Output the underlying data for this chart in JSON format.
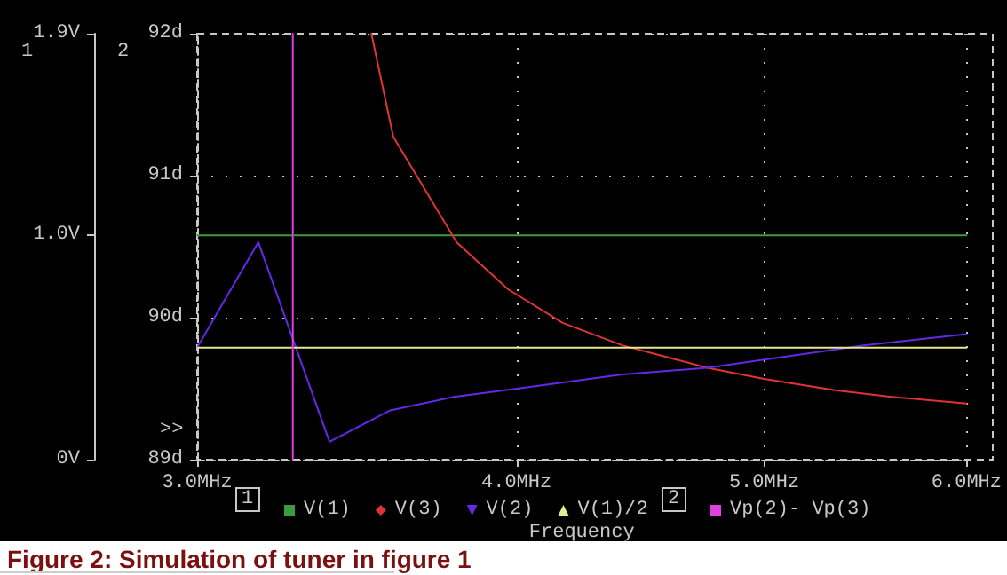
{
  "chart_data": {
    "type": "line",
    "title": "Figure 2: Simulation of tuner in figure 1",
    "xlabel": "Frequency",
    "annotations": [
      ">>",
      "1",
      "2",
      "1",
      "2"
    ],
    "log": "x",
    "xlim": [
      3,
      6
    ],
    "xticks": [
      {
        "value": 3,
        "label": "3.0MHz"
      },
      {
        "value": 4,
        "label": "4.0MHz"
      },
      {
        "value": 5,
        "label": "5.0MHz"
      },
      {
        "value": 6,
        "label": "6.0MHz"
      }
    ],
    "ylim": [
      0,
      1.9
    ],
    "yticks": [
      {
        "value": 0,
        "label": "0V"
      },
      {
        "value": 1.0,
        "label": "1.0V"
      },
      {
        "value": 1.9,
        "label": "1.9V"
      }
    ],
    "y2lim": [
      89,
      92
    ],
    "y2ticks": [
      {
        "value": 89,
        "label": "89d"
      },
      {
        "value": 90,
        "label": "90d"
      },
      {
        "value": 91,
        "label": "91d"
      },
      {
        "value": 92,
        "label": "92d"
      }
    ],
    "grid": true,
    "legend": "bottom",
    "marker": "none",
    "line_style": "solid",
    "series": [
      {
        "name": "V(1)",
        "color": "#3c9c3c",
        "x": [
          3,
          6
        ],
        "values": [
          1.0,
          1.0
        ]
      },
      {
        "name": "V(3)",
        "color": "#e03434",
        "x": [
          3.51,
          3.58,
          3.79,
          3.97,
          4.17,
          4.4,
          4.75,
          5.0,
          5.33,
          5.61,
          6.0
        ],
        "values": [
          1.9,
          1.44,
          0.97,
          0.76,
          0.61,
          0.51,
          0.41,
          0.36,
          0.31,
          0.28,
          0.25
        ]
      },
      {
        "name": "V(2)",
        "color": "#6428e6",
        "x": [
          3.0,
          3.17,
          3.38,
          3.57,
          3.78,
          4.02,
          4.4,
          4.75,
          5.47,
          6.0
        ],
        "values": [
          0.5,
          0.97,
          0.08,
          0.22,
          0.28,
          0.32,
          0.38,
          0.41,
          0.51,
          0.56
        ]
      },
      {
        "name": "V(1)/2",
        "color": "#e8e890",
        "x": [
          3,
          6
        ],
        "values": [
          0.5,
          0.5
        ]
      },
      {
        "name": "Vp(2)- Vp(3)",
        "color": "#e040e0",
        "axis": "y2",
        "x": [
          3.27,
          3.27
        ],
        "values": [
          92,
          89
        ]
      }
    ]
  }
}
